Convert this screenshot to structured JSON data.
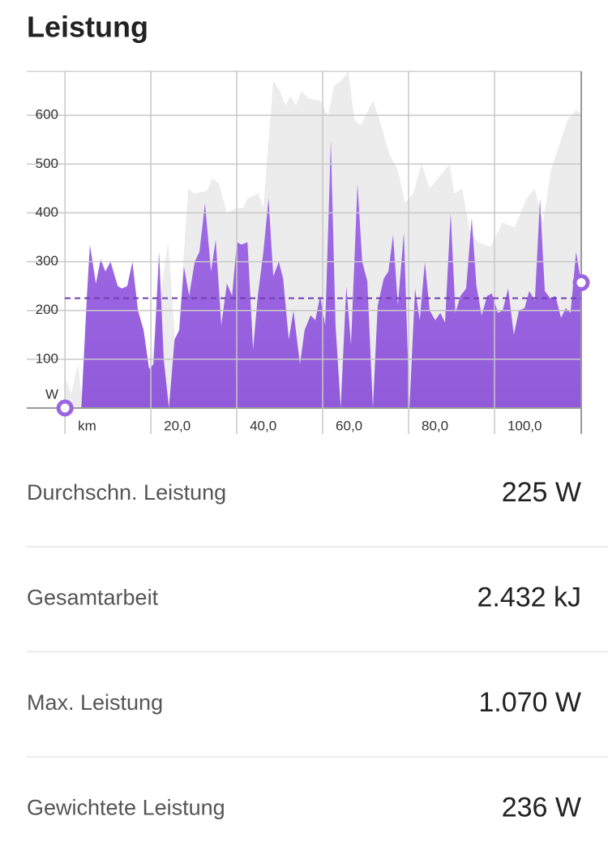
{
  "header": {
    "title": "Leistung"
  },
  "chart_data": {
    "type": "area",
    "xlim": [
      -8.9,
      120.2
    ],
    "ylim": [
      0,
      690
    ],
    "xticks": [
      {
        "value": 0,
        "label": "km"
      },
      {
        "value": 20,
        "label": "20,0"
      },
      {
        "value": 40,
        "label": "40,0"
      },
      {
        "value": 60,
        "label": "60,0"
      },
      {
        "value": 80,
        "label": "80,0"
      },
      {
        "value": 100,
        "label": "100,0"
      }
    ],
    "yticks": [
      {
        "value": 0,
        "label": "W"
      },
      100,
      200,
      300,
      400,
      500,
      600
    ],
    "grid": true,
    "average": 225,
    "series": [
      {
        "color": "#ececec",
        "x": [
          0,
          1.5,
          3,
          4,
          7,
          8.5,
          11.3,
          15,
          19.8,
          24,
          26,
          28.7,
          30,
          33,
          34.3,
          35.8,
          37.7,
          40,
          41.5,
          42.5,
          45,
          46.2,
          48.5,
          50,
          51.3,
          52.5,
          53.8,
          55,
          56.6,
          59.4,
          61.3,
          62.6,
          64.2,
          66,
          67.4,
          68.9,
          71.7,
          73.6,
          75.5,
          77.4,
          79.2,
          81.1,
          83,
          84.9,
          87.7,
          89.6,
          90.6,
          92.5,
          94.3,
          96.2,
          99,
          101.9,
          104.7,
          107.5,
          109.4,
          111.3,
          113.2,
          115.1,
          117,
          118.9,
          120
        ],
        "values": [
          60,
          30,
          90,
          20,
          100,
          80,
          120,
          140,
          80,
          340,
          100,
          450,
          440,
          445,
          470,
          460,
          400,
          410,
          410,
          430,
          440,
          410,
          670,
          650,
          620,
          640,
          620,
          650,
          635,
          630,
          600,
          660,
          670,
          690,
          590,
          580,
          630,
          580,
          520,
          490,
          420,
          440,
          500,
          450,
          480,
          500,
          440,
          450,
          360,
          340,
          330,
          380,
          370,
          430,
          450,
          380,
          490,
          540,
          590,
          610,
          605
        ]
      },
      {
        "color": "#9b64e0",
        "x": [
          0,
          3.8,
          5.1,
          5.8,
          7.2,
          8.3,
          9.4,
          10.6,
          12.3,
          13.2,
          14.5,
          15.7,
          17,
          18.3,
          19.6,
          20.6,
          21.9,
          23,
          24.2,
          25.5,
          26.6,
          27.7,
          28.9,
          30.2,
          31.3,
          32.6,
          34,
          35.1,
          36.4,
          37.7,
          38.9,
          40,
          41.1,
          42.5,
          43.8,
          44.9,
          46.2,
          47.4,
          48.5,
          49.8,
          50.8,
          52.1,
          53.2,
          54.7,
          55.8,
          57.2,
          58.3,
          59.4,
          60.6,
          61.9,
          63,
          64.2,
          65.5,
          66.6,
          68.1,
          69.2,
          70.4,
          71.7,
          72.8,
          74.2,
          75.3,
          76.4,
          77.5,
          78.9,
          80.2,
          81.5,
          82.6,
          83.8,
          84.9,
          86.2,
          87.4,
          88.5,
          89.8,
          90.9,
          92.1,
          93.4,
          94.7,
          95.8,
          97,
          98.3,
          99.4,
          100.8,
          101.9,
          103.2,
          104.5,
          105.7,
          107,
          108.1,
          109.4,
          110.6,
          111.7,
          113,
          114.2,
          115.5,
          116.6,
          117.7,
          119,
          120.2
        ],
        "values": [
          0,
          0,
          230,
          335,
          255,
          305,
          280,
          300,
          250,
          245,
          250,
          300,
          200,
          160,
          80,
          90,
          320,
          100,
          0,
          140,
          160,
          290,
          230,
          300,
          320,
          420,
          280,
          345,
          170,
          255,
          230,
          340,
          335,
          340,
          120,
          230,
          320,
          430,
          270,
          300,
          265,
          140,
          200,
          90,
          160,
          190,
          180,
          230,
          170,
          550,
          170,
          0,
          250,
          130,
          460,
          300,
          260,
          0,
          210,
          265,
          280,
          355,
          210,
          360,
          0,
          245,
          180,
          300,
          200,
          180,
          195,
          175,
          400,
          195,
          230,
          245,
          390,
          250,
          190,
          230,
          235,
          195,
          200,
          245,
          150,
          200,
          205,
          240,
          220,
          430,
          240,
          225,
          230,
          185,
          205,
          195,
          320,
          257
        ]
      }
    ]
  },
  "stats": [
    {
      "label": "Durchschn. Leistung",
      "value": "225 W"
    },
    {
      "label": "Gesamtarbeit",
      "value": "2.432 kJ"
    },
    {
      "label": "Max. Leistung",
      "value": "1.070 W"
    },
    {
      "label": "Gewichtete Leistung",
      "value": "236 W"
    }
  ]
}
